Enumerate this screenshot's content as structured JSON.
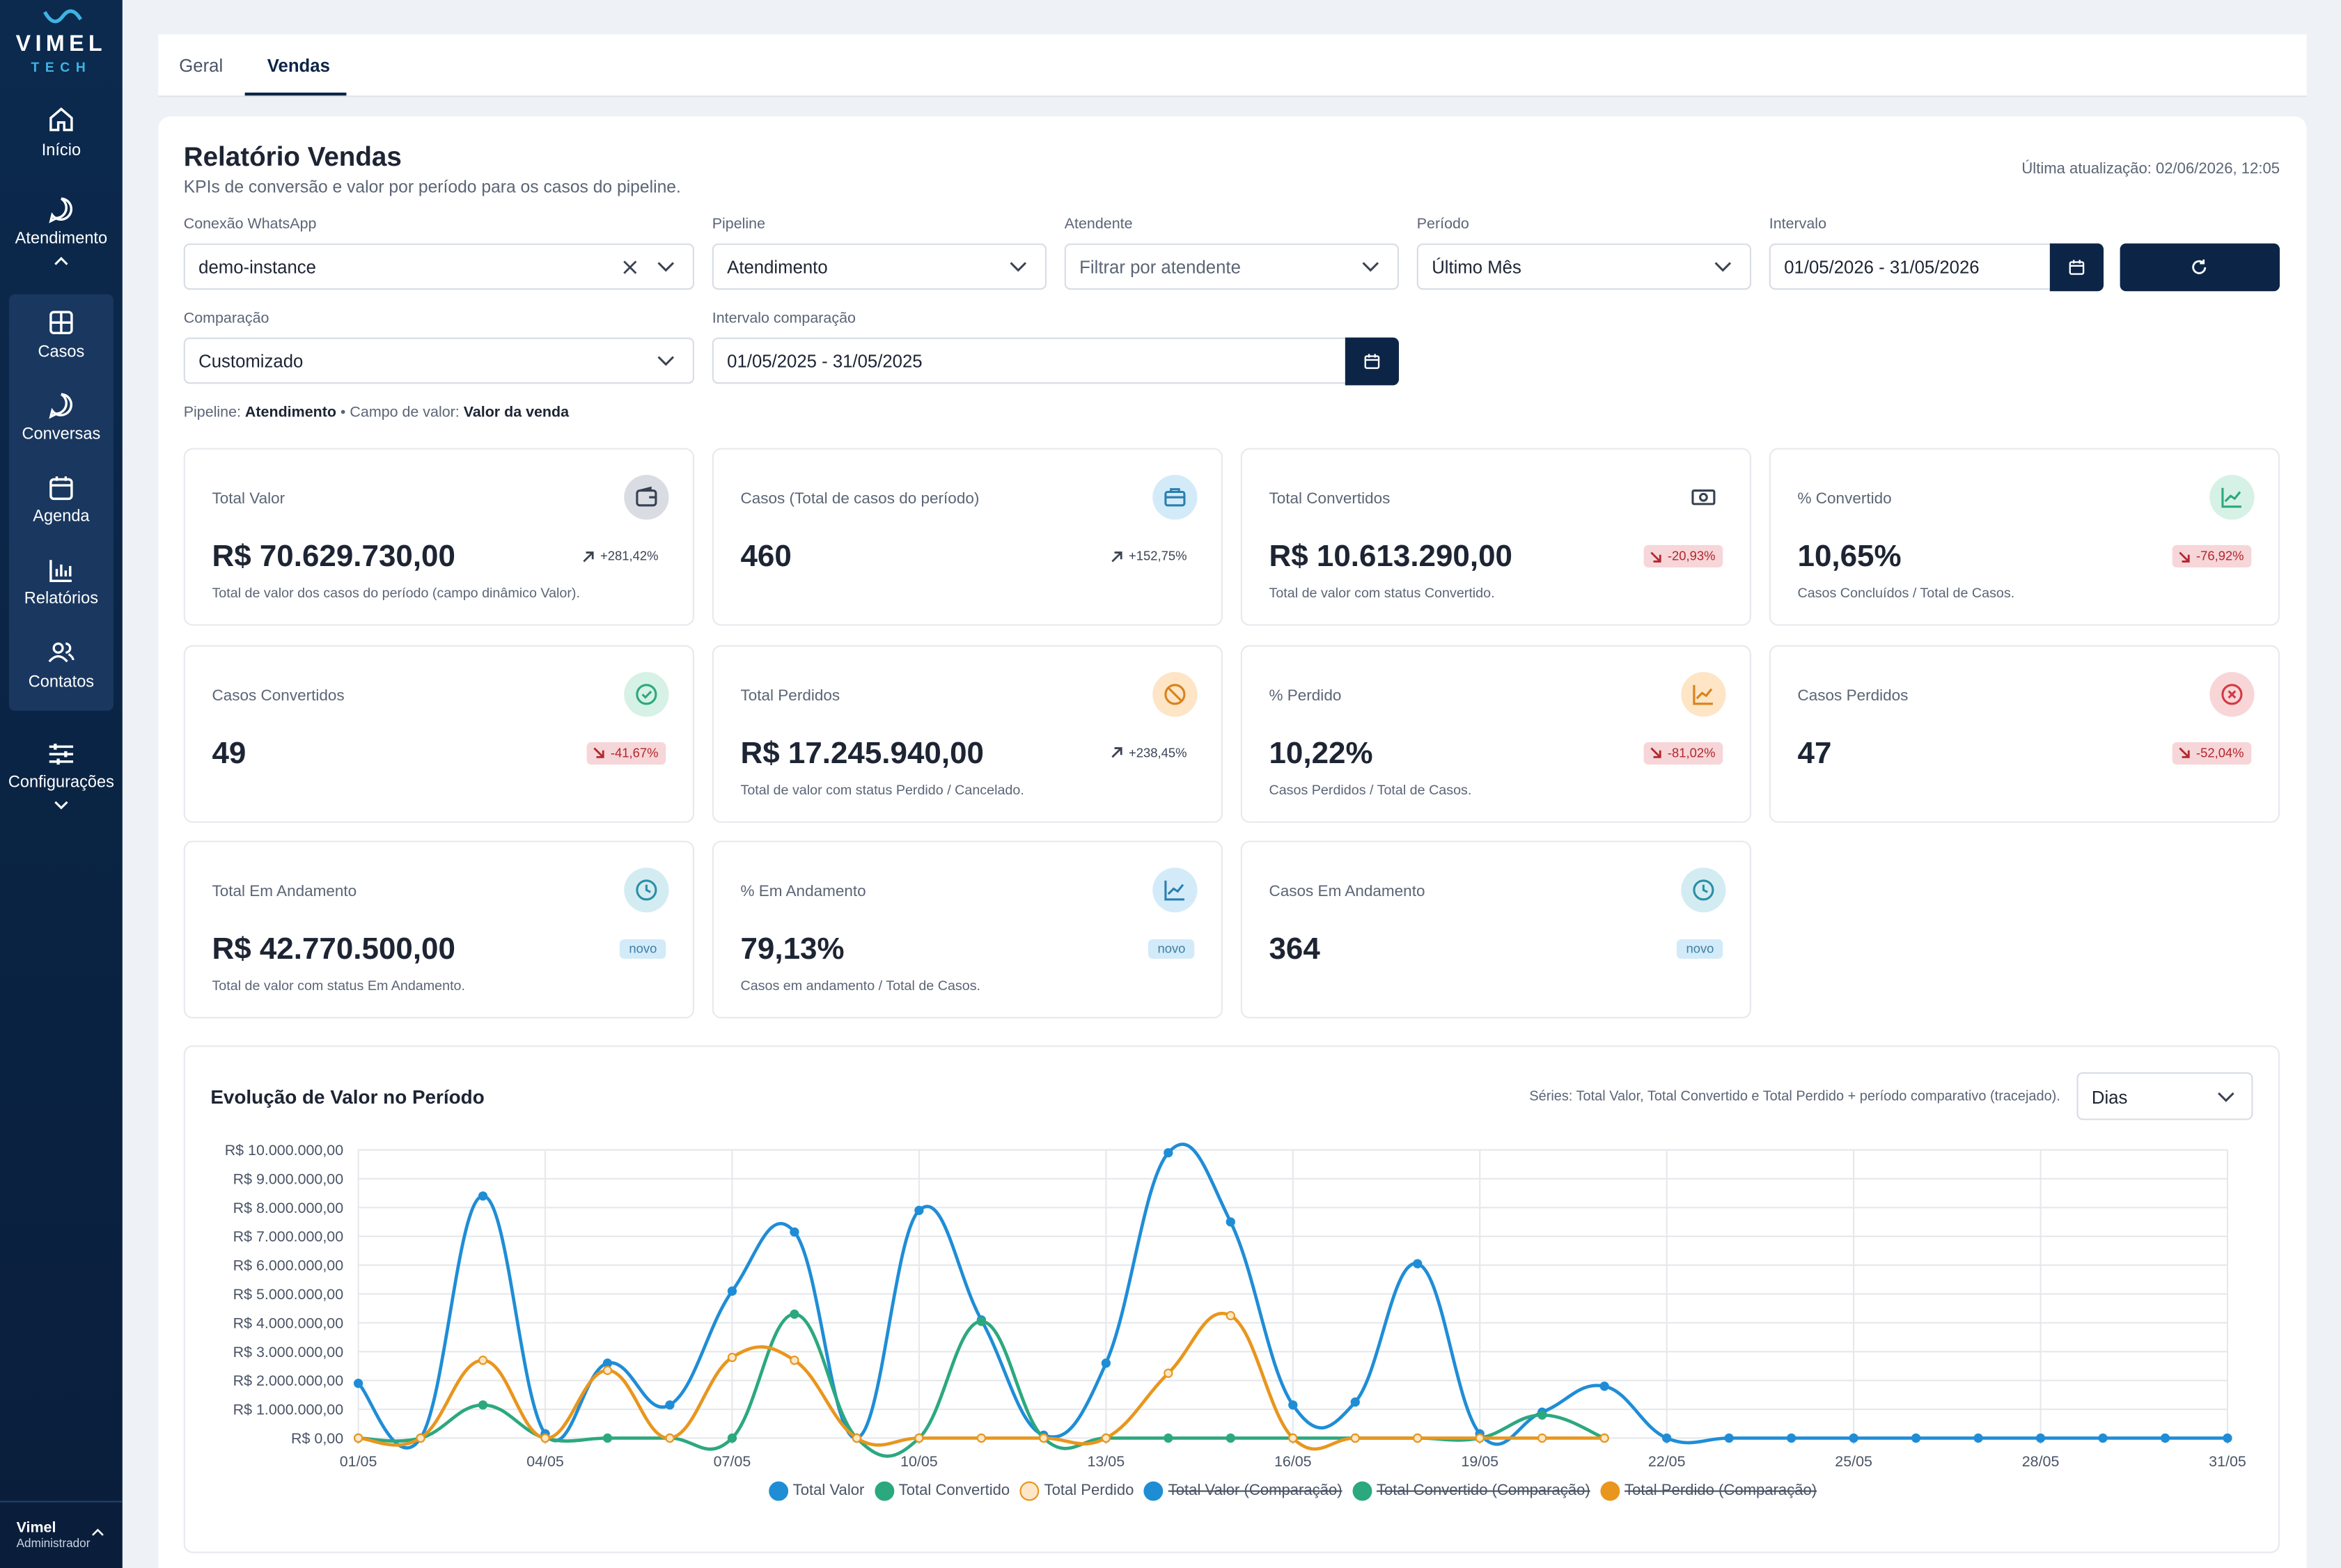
{
  "sidebar": {
    "logo": "VIMEL",
    "logo_sub": "TECH",
    "nav": [
      "Início",
      "Atendimento",
      "Casos",
      "Conversas",
      "Agenda",
      "Relatórios",
      "Contatos",
      "Configurações"
    ],
    "user": "Vimel",
    "role": "Administrador"
  },
  "tabs": [
    "Geral",
    "Vendas"
  ],
  "header": {
    "title": "Relatório Vendas",
    "subtitle": "KPIs de conversão e valor por período para os casos do pipeline.",
    "updated": "Última atualização: 02/06/2026, 12:05"
  },
  "filters": [
    {
      "label": "Conexão WhatsApp",
      "value": "demo-instance"
    },
    {
      "label": "Pipeline",
      "value": "Atendimento"
    },
    {
      "label": "Atendente",
      "placeholder": "Filtrar por atendente"
    },
    {
      "label": "Período",
      "value": "Último Mês"
    },
    {
      "label": "Intervalo",
      "value": "01/05/2026 - 31/05/2026"
    },
    {
      "label": "Comparação",
      "value": "Customizado"
    },
    {
      "label": "Intervalo comparação",
      "value": "01/05/2025 - 31/05/2025"
    }
  ],
  "info": {
    "pipeline_label": "Pipeline:",
    "pipeline": "Atendimento",
    "separator": "•",
    "value_field_label": "Campo de valor:",
    "value_field": "Valor da venda"
  },
  "kpis": [
    {
      "label": "Total Valor",
      "value": "R$ 70.629.730,00",
      "change": "+281,42%",
      "description": "Total de valor dos casos do período (campo dinâmico Valor)."
    },
    {
      "label": "Casos (Total de casos do período)",
      "value": "460",
      "change": "+152,75%"
    },
    {
      "label": "Total Convertidos",
      "value": "R$ 10.613.290,00",
      "change": "-20,93%",
      "description": "Total de valor com status Convertido."
    },
    {
      "label": "% Convertido",
      "value": "10,65%",
      "change": "-76,92%",
      "description": "Casos Concluídos / Total de Casos."
    },
    {
      "label": "Casos Convertidos",
      "value": "49",
      "change": "-41,67%"
    },
    {
      "label": "Total Perdidos",
      "value": "R$ 17.245.940,00",
      "change": "+238,45%",
      "description": "Total de valor com status Perdido / Cancelado."
    },
    {
      "label": "% Perdido",
      "value": "10,22%",
      "change": "-81,02%",
      "description": "Casos Perdidos / Total de Casos."
    },
    {
      "label": "Casos Perdidos",
      "value": "47",
      "change": "-52,04%"
    },
    {
      "label": "Total Em Andamento",
      "value": "R$ 42.770.500,00",
      "change": "novo",
      "description": "Total de valor com status Em Andamento."
    },
    {
      "label": "% Em Andamento",
      "value": "79,13%",
      "change": "novo",
      "description": "Casos em andamento / Total de Casos."
    },
    {
      "label": "Casos Em Andamento",
      "value": "364",
      "change": "novo"
    }
  ],
  "chart_data": {
    "type": "line",
    "title": "Evolução de Valor no Período",
    "note": "Séries: Total Valor, Total Convertido e Total Perdido + período comparativo (tracejado).",
    "granularity": "Dias",
    "categories": [
      "01/05",
      null,
      null,
      "04/05",
      null,
      null,
      "07/05",
      null,
      null,
      "10/05",
      null,
      null,
      "13/05",
      null,
      null,
      "16/05",
      null,
      null,
      "19/05",
      null,
      null,
      "22/05",
      null,
      null,
      "25/05",
      null,
      null,
      "28/05",
      null,
      null,
      "31/05"
    ],
    "series": [
      {
        "name": "Total Valor",
        "color": "#1f8dd6",
        "fill": "#1f8dd6",
        "values": [
          1900000,
          0,
          8400000,
          150000,
          2600000,
          1150000,
          5100000,
          7150000,
          0,
          7900000,
          4100000,
          100000,
          2600000,
          9900000,
          7500000,
          1150000,
          1250000,
          6050000,
          150000,
          900000,
          1800000,
          0,
          0,
          0,
          0,
          0,
          0,
          0,
          0,
          0,
          0
        ]
      },
      {
        "name": "Total Convertido",
        "color": "#2ca87f",
        "fill": "#2ca87f",
        "values": [
          0,
          0,
          1150000,
          0,
          0,
          0,
          0,
          4300000,
          0,
          0,
          4050000,
          0,
          0,
          0,
          0,
          0,
          0,
          0,
          0,
          800000,
          0,
          null,
          null,
          null,
          null,
          null,
          null,
          null,
          null,
          null,
          null
        ]
      },
      {
        "name": "Total Perdido",
        "color": "#e8961e",
        "fill": "#fde7c8",
        "values": [
          0,
          0,
          2700000,
          0,
          2350000,
          0,
          2800000,
          2700000,
          0,
          0,
          0,
          0,
          0,
          2250000,
          4250000,
          0,
          0,
          0,
          0,
          0,
          0,
          null,
          null,
          null,
          null,
          null,
          null,
          null,
          null,
          null,
          null
        ]
      }
    ],
    "hidden_series": [
      {
        "name": "Total Valor (Comparação)",
        "color": "#1f8dd6"
      },
      {
        "name": "Total Convertido (Comparação)",
        "color": "#2ca87f"
      },
      {
        "name": "Total Perdido (Comparação)",
        "color": "#e8961e"
      }
    ],
    "ylim": [
      0,
      10000000
    ],
    "yticks": [
      {
        "value": 0,
        "label": "R$ 0,00"
      },
      {
        "value": 1000000,
        "label": "R$ 1.000.000,00"
      },
      {
        "value": 2000000,
        "label": "R$ 2.000.000,00"
      },
      {
        "value": 3000000,
        "label": "R$ 3.000.000,00"
      },
      {
        "value": 4000000,
        "label": "R$ 4.000.000,00"
      },
      {
        "value": 5000000,
        "label": "R$ 5.000.000,00"
      },
      {
        "value": 6000000,
        "label": "R$ 6.000.000,00"
      },
      {
        "value": 7000000,
        "label": "R$ 7.000.000,00"
      },
      {
        "value": 8000000,
        "label": "R$ 8.000.000,00"
      },
      {
        "value": 9000000,
        "label": "R$ 9.000.000,00"
      },
      {
        "value": 10000000,
        "label": "R$ 10.000.000,00"
      }
    ],
    "grid": true
  }
}
